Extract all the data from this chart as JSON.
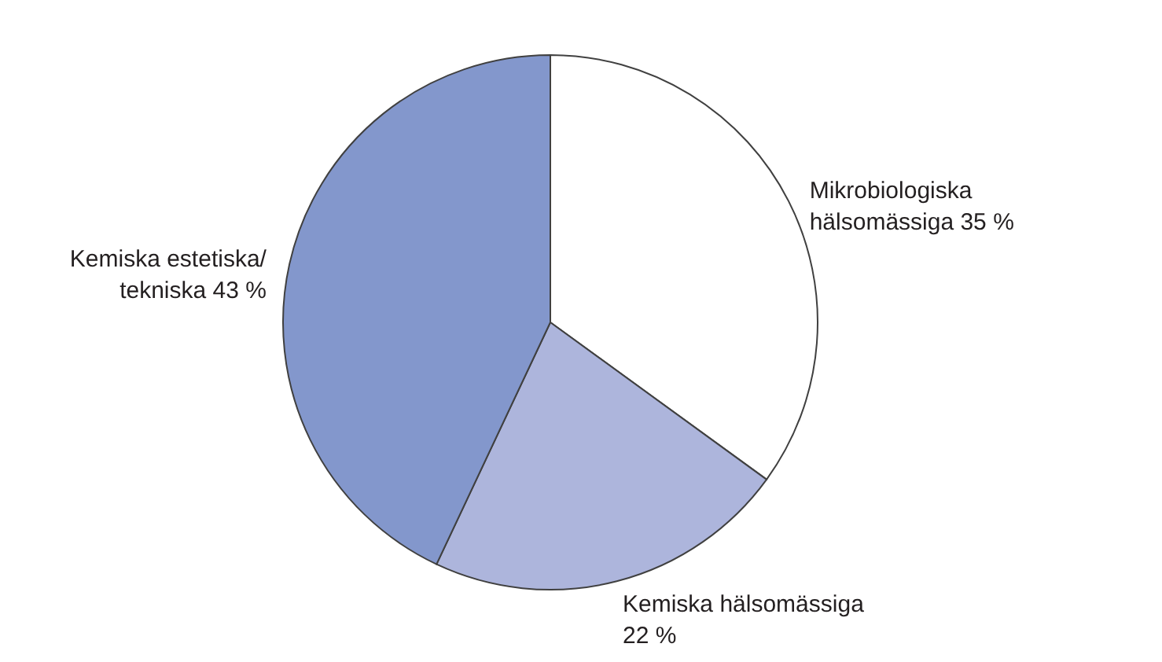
{
  "chart_data": {
    "type": "pie",
    "categories": [
      "Mikrobiologiska hälsomässiga",
      "Kemiska hälsomässiga",
      "Kemiska estetiska/tekniska"
    ],
    "values": [
      35,
      22,
      43
    ],
    "value_labels": [
      "35 %",
      "22 %",
      "43 %"
    ],
    "colors": [
      "#ffffff",
      "#adb5dc",
      "#8397cc"
    ]
  }
}
